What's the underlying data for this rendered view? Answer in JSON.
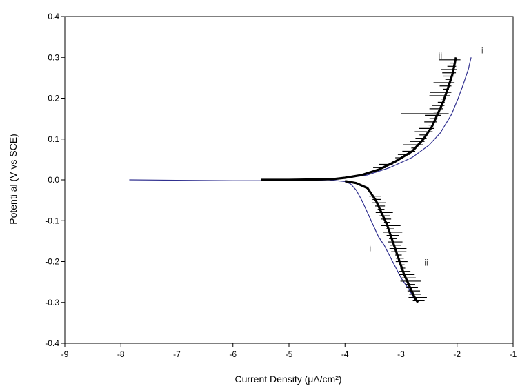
{
  "chart_data": {
    "type": "line",
    "title": "",
    "xlabel": "Current Density (μA/cm²)",
    "ylabel": "Potenti al (V vs SCE)",
    "xlim": [
      -9,
      -1
    ],
    "ylim": [
      -0.4,
      0.4
    ],
    "xticks": [
      "-9",
      "-8",
      "-7",
      "-6",
      "-5",
      "-4",
      "-3",
      "-2",
      "-1"
    ],
    "yticks": [
      "0.4",
      "0.3",
      "0.2",
      "0.1",
      "0.0",
      "-0.1",
      "-0.2",
      "-0.3",
      "-0.4"
    ],
    "grid": false,
    "legend": "none",
    "series": [
      {
        "name": "i",
        "color": "#2f2f8f",
        "points": [
          [
            -7.85,
            0.0
          ],
          [
            -7.0,
            -0.001
          ],
          [
            -6.0,
            -0.002
          ],
          [
            -5.5,
            -0.002
          ],
          [
            -5.0,
            -0.001
          ],
          [
            -4.5,
            -0.001
          ],
          [
            -4.3,
            0.0
          ],
          [
            -4.0,
            0.004
          ],
          [
            -3.6,
            0.012
          ],
          [
            -3.2,
            0.03
          ],
          [
            -2.8,
            0.055
          ],
          [
            -2.5,
            0.085
          ],
          [
            -2.3,
            0.115
          ],
          [
            -2.1,
            0.16
          ],
          [
            -1.98,
            0.2
          ],
          [
            -1.9,
            0.23
          ],
          [
            -1.8,
            0.27
          ],
          [
            -1.75,
            0.3
          ],
          [
            -4.3,
            0.0
          ],
          [
            -4.0,
            -0.004
          ],
          [
            -3.9,
            -0.01
          ],
          [
            -3.8,
            -0.025
          ],
          [
            -3.7,
            -0.05
          ],
          [
            -3.6,
            -0.08
          ],
          [
            -3.5,
            -0.11
          ],
          [
            -3.4,
            -0.14
          ],
          [
            -3.3,
            -0.16
          ],
          [
            -3.15,
            -0.2
          ],
          [
            -3.0,
            -0.24
          ],
          [
            -2.85,
            -0.27
          ],
          [
            -2.75,
            -0.295
          ]
        ]
      },
      {
        "name": "ii",
        "color": "#000000",
        "anodic": [
          [
            -5.5,
            0.0
          ],
          [
            -5.0,
            0.0
          ],
          [
            -4.5,
            0.001
          ],
          [
            -4.2,
            0.002
          ],
          [
            -4.0,
            0.005
          ],
          [
            -3.7,
            0.012
          ],
          [
            -3.4,
            0.025
          ],
          [
            -3.1,
            0.045
          ],
          [
            -2.8,
            0.07
          ],
          [
            -2.6,
            0.1
          ],
          [
            -2.45,
            0.13
          ],
          [
            -2.35,
            0.16
          ],
          [
            -2.25,
            0.19
          ],
          [
            -2.15,
            0.23
          ],
          [
            -2.08,
            0.26
          ],
          [
            -2.02,
            0.3
          ]
        ],
        "cathodic": [
          [
            -4.0,
            -0.003
          ],
          [
            -3.8,
            -0.008
          ],
          [
            -3.6,
            -0.02
          ],
          [
            -3.45,
            -0.05
          ],
          [
            -3.35,
            -0.08
          ],
          [
            -3.25,
            -0.11
          ],
          [
            -3.15,
            -0.15
          ],
          [
            -3.05,
            -0.19
          ],
          [
            -2.95,
            -0.23
          ],
          [
            -2.85,
            -0.26
          ],
          [
            -2.75,
            -0.29
          ],
          [
            -2.7,
            -0.3
          ]
        ]
      }
    ],
    "annotations": [
      {
        "text": "i",
        "x": -1.55,
        "y": 0.31
      },
      {
        "text": "ii",
        "x": -2.3,
        "y": 0.295
      },
      {
        "text": "i",
        "x": -3.55,
        "y": -0.175
      },
      {
        "text": "ii",
        "x": -2.55,
        "y": -0.21
      }
    ]
  }
}
